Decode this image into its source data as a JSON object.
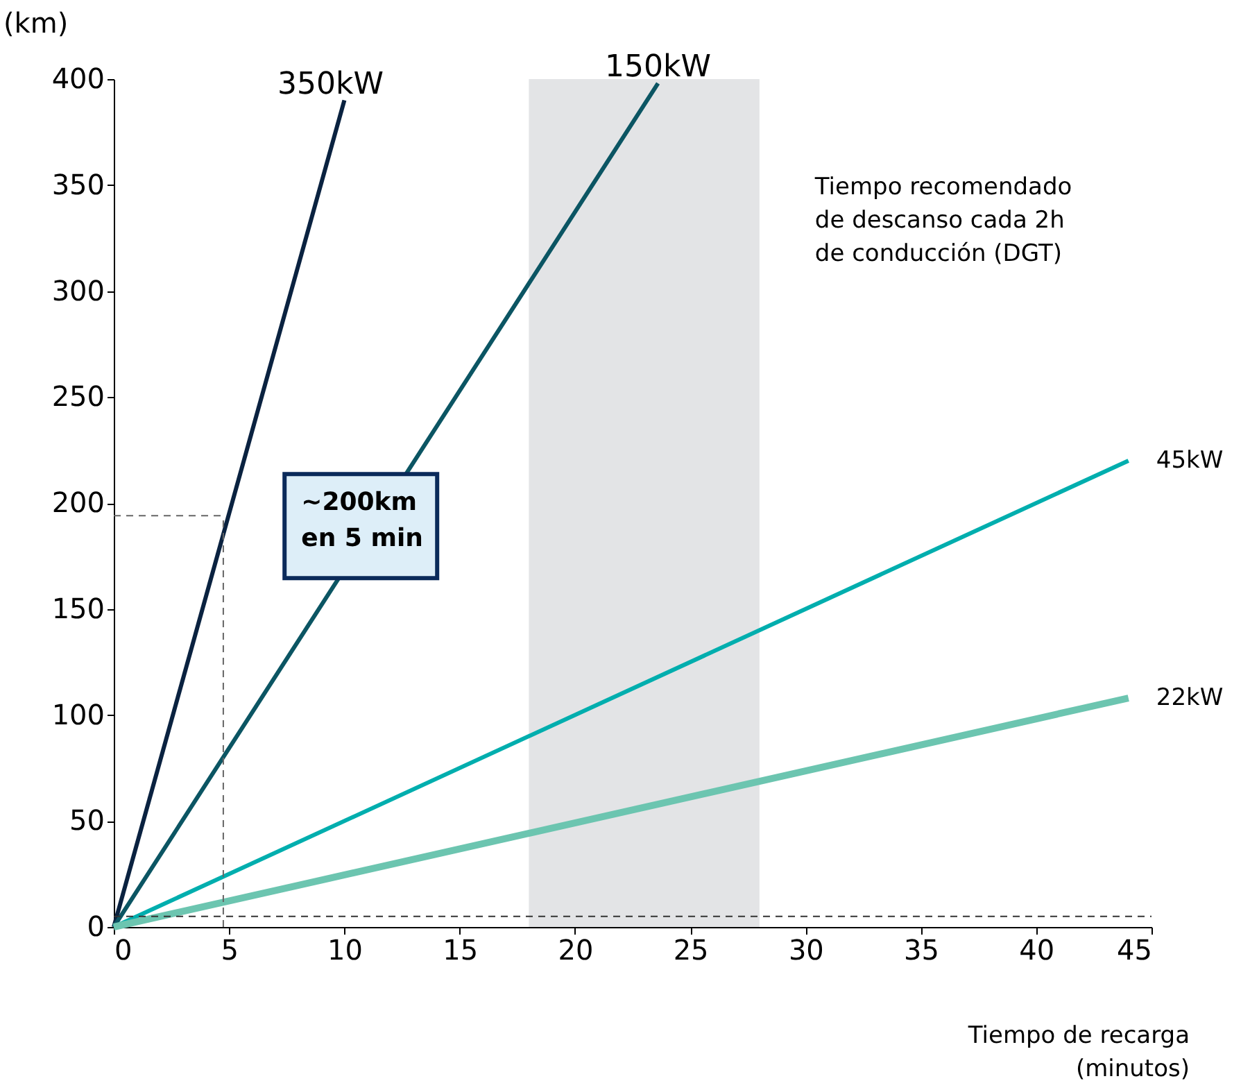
{
  "chart_data": {
    "type": "line",
    "ylabel": "(km)",
    "xlabel": "Tiempo de recarga\n(minutos)",
    "xlim": [
      0,
      45
    ],
    "xticks": [
      0,
      5,
      10,
      15,
      20,
      25,
      30,
      35,
      40,
      45
    ],
    "ylim": [
      0,
      400
    ],
    "yticks": [
      0,
      50,
      100,
      150,
      200,
      250,
      300,
      350,
      400
    ],
    "grid": false,
    "marker": "none",
    "line_style": "solid",
    "series": [
      {
        "name": "350kW",
        "color": "#0a2240",
        "x": [
          0,
          10
        ],
        "values": [
          0,
          390
        ]
      },
      {
        "name": "150kW",
        "color": "#0b5563",
        "x": [
          0,
          23.6
        ],
        "values": [
          0,
          398
        ]
      },
      {
        "name": "45kW",
        "color": "#00aeae",
        "x": [
          0,
          44
        ],
        "values": [
          0,
          220
        ]
      },
      {
        "name": "22kW",
        "color": "#6cc5b0",
        "x": [
          0,
          44
        ],
        "values": [
          0,
          108
        ]
      }
    ],
    "bands": [
      {
        "axis": "x",
        "from": 18,
        "to": 28,
        "label": "Tiempo recomendado\nde descanso cada 2h\nde conducción (DGT)",
        "color": "#e3e4e6"
      }
    ],
    "ref_lines": [
      {
        "axis": "y",
        "value": 194,
        "line_style": "dashed",
        "color": "#666666"
      },
      {
        "axis": "x",
        "value": 4.75,
        "line_style": "dashed",
        "color": "#666666"
      },
      {
        "axis": "y",
        "value": 5,
        "line_style": "dashed",
        "color": "#333333"
      }
    ],
    "annotations": [
      {
        "text": "~200km\nen 5 min",
        "x": 5,
        "y": 194
      }
    ]
  }
}
